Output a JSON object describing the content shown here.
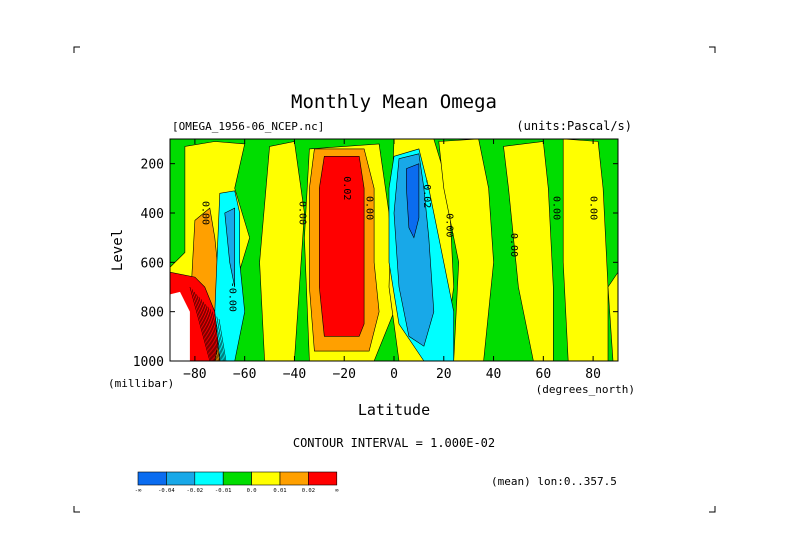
{
  "chart_data": {
    "type": "heatmap",
    "title": "Monthly Mean Omega",
    "file_label": "[OMEGA_1956-06_NCEP.nc]",
    "units_label": "(units:Pascal/s)",
    "xlabel": "Latitude",
    "x_unit_label": "(degrees_north)",
    "ylabel": "Level",
    "y_unit_label": "(millibar)",
    "xlim": [
      -90,
      90
    ],
    "ylim": [
      1000,
      100
    ],
    "x_ticks": [
      -80,
      -60,
      -40,
      -20,
      0,
      20,
      40,
      60,
      80
    ],
    "y_ticks": [
      200,
      400,
      600,
      800,
      1000
    ],
    "contour_interval_text": "CONTOUR INTERVAL = 1.000E-02",
    "mean_text": "(mean) lon:0..357.5",
    "legend": {
      "colors": [
        "#0a6cf0",
        "#18a8e8",
        "#00ffff",
        "#00dd00",
        "#ffff00",
        "#ffa000",
        "#ff0000"
      ],
      "tick_labels": [
        "-∞",
        "-0.04",
        "-0.02",
        "-0.01",
        "0.0",
        "0.01",
        "0.02",
        "∞"
      ]
    },
    "contour_labels": [
      {
        "text": "0.00",
        "lat": -77,
        "lev": 400
      },
      {
        "text": "0.00",
        "lat": -38,
        "lev": 400
      },
      {
        "text": "0.02",
        "lat": -20,
        "lev": 300
      },
      {
        "text": "0.00",
        "lat": -11,
        "lev": 380
      },
      {
        "text": "-0.02",
        "lat": 12,
        "lev": 320
      },
      {
        "text": "0.00",
        "lat": 21,
        "lev": 450
      },
      {
        "text": "0.00",
        "lat": 47,
        "lev": 530
      },
      {
        "text": "0.00",
        "lat": 64,
        "lev": 380
      },
      {
        "text": "0.00",
        "lat": 79,
        "lev": 380
      },
      {
        "text": "-0.00",
        "lat": -66,
        "lev": 740
      }
    ],
    "regions": [
      {
        "level": 3,
        "pts": [
          [
            -90,
            100
          ],
          [
            90,
            100
          ],
          [
            90,
            1000
          ],
          [
            -90,
            1000
          ]
        ]
      },
      {
        "level": 4,
        "pts": [
          [
            -84,
            130
          ],
          [
            -72,
            110
          ],
          [
            -60,
            120
          ],
          [
            -64,
            300
          ],
          [
            -58,
            500
          ],
          [
            -64,
            700
          ],
          [
            -66,
            1000
          ],
          [
            -90,
            1000
          ],
          [
            -90,
            620
          ],
          [
            -84,
            560
          ]
        ]
      },
      {
        "level": 4,
        "pts": [
          [
            -50,
            130
          ],
          [
            -40,
            110
          ],
          [
            -36,
            400
          ],
          [
            -38,
            700
          ],
          [
            -40,
            1000
          ],
          [
            -52,
            1000
          ],
          [
            -54,
            600
          ]
        ]
      },
      {
        "level": 4,
        "pts": [
          [
            -34,
            140
          ],
          [
            -6,
            120
          ],
          [
            -2,
            400
          ],
          [
            0,
            800
          ],
          [
            -8,
            1000
          ],
          [
            -34,
            1000
          ],
          [
            -36,
            500
          ]
        ]
      },
      {
        "level": 4,
        "pts": [
          [
            0,
            100
          ],
          [
            16,
            100
          ],
          [
            22,
            300
          ],
          [
            24,
            700
          ],
          [
            20,
            1000
          ],
          [
            2,
            1000
          ],
          [
            -2,
            700
          ]
        ]
      },
      {
        "level": 4,
        "pts": [
          [
            18,
            110
          ],
          [
            34,
            100
          ],
          [
            38,
            300
          ],
          [
            40,
            600
          ],
          [
            36,
            1000
          ],
          [
            24,
            1000
          ],
          [
            26,
            600
          ],
          [
            20,
            300
          ]
        ]
      },
      {
        "level": 4,
        "pts": [
          [
            44,
            130
          ],
          [
            60,
            110
          ],
          [
            62,
            300
          ],
          [
            64,
            700
          ],
          [
            64,
            1000
          ],
          [
            56,
            1000
          ],
          [
            50,
            700
          ],
          [
            46,
            300
          ]
        ]
      },
      {
        "level": 4,
        "pts": [
          [
            68,
            100
          ],
          [
            82,
            110
          ],
          [
            84,
            300
          ],
          [
            86,
            700
          ],
          [
            86,
            1000
          ],
          [
            70,
            1000
          ],
          [
            68,
            600
          ]
        ]
      },
      {
        "level": 4,
        "pts": [
          [
            86,
            700
          ],
          [
            90,
            640
          ],
          [
            90,
            1000
          ],
          [
            88,
            1000
          ]
        ]
      },
      {
        "level": 5,
        "pts": [
          [
            -32,
            140
          ],
          [
            -12,
            140
          ],
          [
            -8,
            300
          ],
          [
            -8,
            600
          ],
          [
            -6,
            800
          ],
          [
            -10,
            960
          ],
          [
            -32,
            960
          ],
          [
            -34,
            700
          ],
          [
            -34,
            300
          ]
        ]
      },
      {
        "level": 6,
        "pts": [
          [
            -28,
            170
          ],
          [
            -14,
            170
          ],
          [
            -12,
            300
          ],
          [
            -12,
            600
          ],
          [
            -12,
            850
          ],
          [
            -14,
            900
          ],
          [
            -28,
            900
          ],
          [
            -30,
            700
          ],
          [
            -30,
            300
          ]
        ]
      },
      {
        "level": 5,
        "pts": [
          [
            -80,
            430
          ],
          [
            -74,
            380
          ],
          [
            -72,
            500
          ],
          [
            -70,
            700
          ],
          [
            -70,
            1000
          ],
          [
            -80,
            1000
          ],
          [
            -82,
            800
          ]
        ]
      },
      {
        "level": 6,
        "pts": [
          [
            -90,
            640
          ],
          [
            -80,
            660
          ],
          [
            -76,
            700
          ],
          [
            -72,
            800
          ],
          [
            -70,
            900
          ],
          [
            -72,
            1000
          ],
          [
            -90,
            1000
          ]
        ]
      },
      {
        "level": 2,
        "pts": [
          [
            -70,
            320
          ],
          [
            -64,
            310
          ],
          [
            -62,
            400
          ],
          [
            -62,
            600
          ],
          [
            -60,
            800
          ],
          [
            -64,
            1000
          ],
          [
            -70,
            1000
          ],
          [
            -72,
            800
          ]
        ]
      },
      {
        "level": 1,
        "pts": [
          [
            -68,
            400
          ],
          [
            -64,
            380
          ],
          [
            -64,
            600
          ],
          [
            -64,
            700
          ],
          [
            -66,
            600
          ]
        ]
      },
      {
        "level": 2,
        "pts": [
          [
            0,
            170
          ],
          [
            10,
            140
          ],
          [
            14,
            300
          ],
          [
            18,
            500
          ],
          [
            24,
            800
          ],
          [
            24,
            1000
          ],
          [
            12,
            1000
          ],
          [
            2,
            850
          ],
          [
            -2,
            600
          ],
          [
            -2,
            300
          ]
        ]
      },
      {
        "level": 1,
        "pts": [
          [
            2,
            180
          ],
          [
            10,
            160
          ],
          [
            12,
            300
          ],
          [
            14,
            500
          ],
          [
            16,
            800
          ],
          [
            12,
            940
          ],
          [
            6,
            900
          ],
          [
            2,
            700
          ],
          [
            0,
            400
          ]
        ]
      },
      {
        "level": 0,
        "pts": [
          [
            5,
            220
          ],
          [
            10,
            200
          ],
          [
            10,
            420
          ],
          [
            8,
            500
          ],
          [
            6,
            460
          ],
          [
            5,
            300
          ]
        ]
      },
      {
        "level": 3,
        "pts": [
          [
            -90,
            1000
          ],
          [
            -84,
            1000
          ],
          [
            -84,
            840
          ],
          [
            -88,
            760
          ],
          [
            -90,
            740
          ]
        ]
      }
    ],
    "masked": [
      [
        -90,
        730
      ],
      [
        -86,
        720
      ],
      [
        -82,
        800
      ],
      [
        -82,
        1000
      ],
      [
        -90,
        1000
      ]
    ]
  }
}
